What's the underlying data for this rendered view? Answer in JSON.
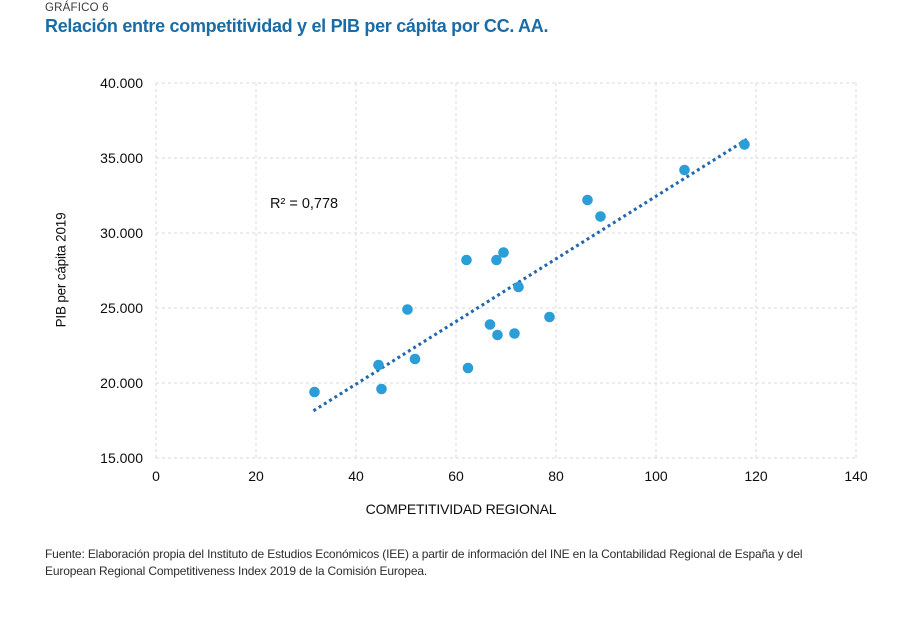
{
  "header": {
    "kicker": "GRÁFICO 6",
    "title": "Relación entre competitividad y el PIB per cápita por CC. AA."
  },
  "chart_data": {
    "type": "scatter",
    "title": "Relación entre competitividad y el PIB per cápita por CC. AA.",
    "xlabel": "COMPETITIVIDAD REGIONAL",
    "ylabel": "PIB per cápita 2019",
    "xlim": [
      0,
      140
    ],
    "ylim": [
      15000,
      40000
    ],
    "grid": "dashed-both-axes",
    "legend": "none",
    "x_ticks": [
      {
        "value": 0,
        "label": "0"
      },
      {
        "value": 20,
        "label": "20"
      },
      {
        "value": 40,
        "label": "40"
      },
      {
        "value": 60,
        "label": "60"
      },
      {
        "value": 80,
        "label": "80"
      },
      {
        "value": 100,
        "label": "100"
      },
      {
        "value": 120,
        "label": "120"
      },
      {
        "value": 140,
        "label": "140"
      }
    ],
    "y_ticks": [
      {
        "value": 40000,
        "label": "40.000"
      },
      {
        "value": 35000,
        "label": "35.000"
      },
      {
        "value": 30000,
        "label": "30.000"
      },
      {
        "value": 25000,
        "label": "25.000"
      },
      {
        "value": 20000,
        "label": "20.000"
      },
      {
        "value": 15000,
        "label": "15.000"
      }
    ],
    "points": [
      {
        "x": 31.7,
        "y": 19400
      },
      {
        "x": 44.5,
        "y": 21200
      },
      {
        "x": 45.1,
        "y": 19600
      },
      {
        "x": 50.3,
        "y": 24900
      },
      {
        "x": 51.8,
        "y": 21600
      },
      {
        "x": 62.1,
        "y": 28200
      },
      {
        "x": 62.4,
        "y": 21000
      },
      {
        "x": 66.8,
        "y": 23900
      },
      {
        "x": 68.1,
        "y": 28200
      },
      {
        "x": 68.3,
        "y": 23200
      },
      {
        "x": 69.5,
        "y": 28700
      },
      {
        "x": 71.7,
        "y": 23300
      },
      {
        "x": 72.5,
        "y": 26400
      },
      {
        "x": 78.7,
        "y": 24400
      },
      {
        "x": 86.3,
        "y": 32200
      },
      {
        "x": 88.9,
        "y": 31100
      },
      {
        "x": 105.7,
        "y": 34200
      },
      {
        "x": 117.7,
        "y": 35900
      }
    ],
    "trend": {
      "style": "dotted-linear",
      "x1": 31.5,
      "y1": 18150,
      "x2": 118.2,
      "y2": 36250
    },
    "annotation": {
      "text": "R² = 0,778"
    },
    "colors": {
      "point": "#2B9DD7",
      "trend": "#2367AE",
      "grid": "#D9D9D9",
      "title": "#1A6CA6",
      "kicker": "#3B3B3B",
      "tick_text": "#0D0D0D",
      "source_text": "#2D2D2D"
    }
  },
  "footer": {
    "lines": [
      "Fuente: Elaboración propia del Instituto de Estudios Económicos (IEE) a partir de información del INE en la Contabilidad Regional de España y del",
      "European Regional Competitiveness Index 2019 de la Comisión Europea."
    ]
  }
}
